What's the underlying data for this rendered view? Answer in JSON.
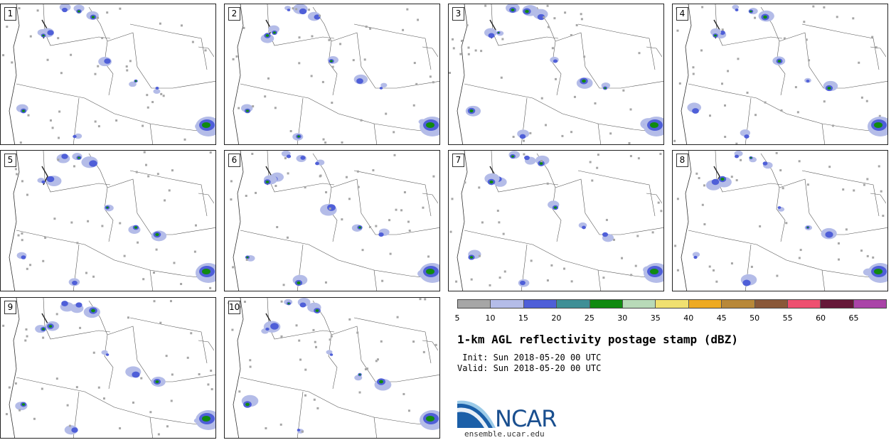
{
  "panels": [
    {
      "label": "1"
    },
    {
      "label": "2"
    },
    {
      "label": "3"
    },
    {
      "label": "4"
    },
    {
      "label": "5"
    },
    {
      "label": "6"
    },
    {
      "label": "7"
    },
    {
      "label": "8"
    },
    {
      "label": "9"
    },
    {
      "label": "10"
    }
  ],
  "colorbar": {
    "colors": [
      "#a6a6a6",
      "#b4bce8",
      "#4f5fd8",
      "#3f8f96",
      "#108a10",
      "#b8dab8",
      "#f0e070",
      "#eeaa22",
      "#b88838",
      "#8a5838",
      "#ee5070",
      "#661838",
      "#aa44a8"
    ],
    "ticks": [
      "5",
      "10",
      "15",
      "20",
      "25",
      "30",
      "35",
      "40",
      "45",
      "50",
      "55",
      "60",
      "65"
    ]
  },
  "title": "1-km AGL reflectivity postage stamp (dBZ)",
  "init": " Init: Sun 2018-05-20 00 UTC",
  "valid": "Valid: Sun 2018-05-20 00 UTC",
  "logo": {
    "text": "NCAR",
    "url": "ensemble.ucar.edu"
  }
}
